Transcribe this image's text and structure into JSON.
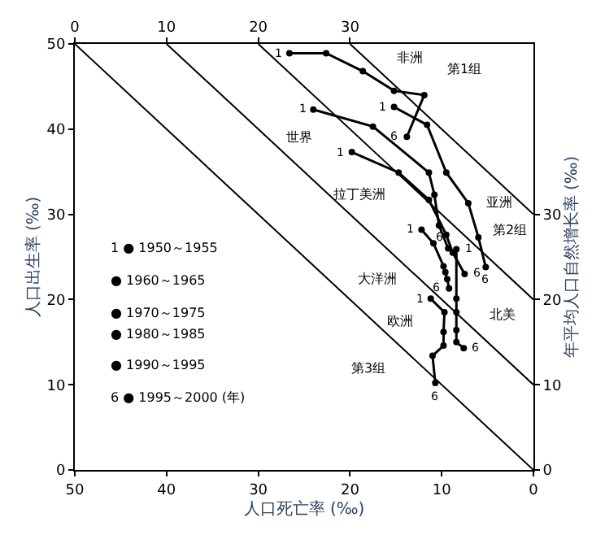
{
  "chart_data": {
    "type": "scatter",
    "xlabel": "人口死亡率 (‰)",
    "ylabel": "人口出生率 (‰)",
    "y2label": "年平均人口自然增长率 (‰)",
    "xlim": [
      50,
      0
    ],
    "xticks": [
      50,
      40,
      30,
      20,
      10,
      0
    ],
    "ylim": [
      0,
      50
    ],
    "yticks": [
      0,
      10,
      20,
      30,
      40,
      50
    ],
    "x2lim": [
      0,
      50
    ],
    "x2ticks": [
      0,
      10,
      20,
      30
    ],
    "y2lim": [
      0,
      50
    ],
    "y2ticks": [
      0,
      10,
      20,
      30
    ],
    "marker": "circle",
    "line_style": "solid",
    "series": [
      {
        "type": "line",
        "color": "#000000",
        "x": [
          50,
          0
        ],
        "values": [
          50,
          0
        ],
        "marker": "none"
      },
      {
        "type": "line",
        "color": "#000000",
        "x": [
          40,
          0
        ],
        "values": [
          50,
          10
        ],
        "marker": "none"
      },
      {
        "type": "line",
        "color": "#000000",
        "x": [
          30,
          0
        ],
        "values": [
          50,
          20
        ],
        "marker": "none"
      },
      {
        "type": "line",
        "color": "#000000",
        "x": [
          20,
          0
        ],
        "values": [
          50,
          30
        ],
        "marker": "none"
      },
      {
        "color": "#000000",
        "x": [
          26.6,
          22.6,
          18.6,
          15.2,
          11.9,
          13.8
        ],
        "values": [
          48.9,
          48.9,
          46.8,
          44.5,
          44.0,
          39.1
        ]
      },
      {
        "color": "#000000",
        "x": [
          15.2,
          11.6,
          9.5,
          7.1,
          6.0,
          5.2
        ],
        "values": [
          42.6,
          40.5,
          34.9,
          31.3,
          27.3,
          23.8
        ]
      },
      {
        "color": "#000000",
        "x": [
          24.0,
          17.5,
          11.4,
          10.8,
          10.3,
          9.3
        ],
        "values": [
          42.3,
          40.3,
          34.9,
          32.3,
          28.7,
          26.0
        ]
      },
      {
        "color": "#000000",
        "x": [
          19.8,
          14.7,
          11.4,
          9.5,
          8.8,
          7.5
        ],
        "values": [
          37.3,
          34.9,
          31.7,
          27.6,
          25.5,
          23.0
        ]
      },
      {
        "color": "#000000",
        "x": [
          12.2,
          10.9,
          9.8,
          9.6,
          9.4,
          9.2
        ],
        "values": [
          28.2,
          26.6,
          23.9,
          23.2,
          22.4,
          21.3
        ]
      },
      {
        "color": "#000000",
        "x": [
          11.2,
          9.7,
          9.8,
          9.8,
          11.0,
          10.7
        ],
        "values": [
          20.1,
          18.5,
          16.2,
          14.6,
          13.4,
          10.2
        ]
      },
      {
        "color": "#000000",
        "x": [
          8.4,
          8.4,
          8.4,
          8.4,
          8.4,
          7.6
        ],
        "values": [
          25.9,
          20.1,
          18.5,
          16.4,
          15.0,
          14.3
        ]
      }
    ],
    "annotations": [
      "非洲",
      "第1组",
      "世界",
      "拉丁美洲",
      "亚洲",
      "第2组",
      "大洋洲",
      "欧洲",
      "北美",
      "第3组",
      "1 ● 1950～1955",
      "● 1960～1965",
      "● 1970～1975",
      "● 1980～1985",
      "● 1990～1995",
      "6 ● 1995～2000 (年)",
      {
        "text": "1",
        "x": 26.6,
        "y": 48.9
      },
      {
        "text": "6",
        "x": 13.8,
        "y": 39.1
      },
      {
        "text": "1",
        "x": 15.2,
        "y": 42.6
      },
      {
        "text": "6",
        "x": 5.2,
        "y": 23.8
      },
      {
        "text": "1",
        "x": 24.0,
        "y": 42.3
      },
      {
        "text": "6",
        "x": 9.3,
        "y": 26.0
      },
      {
        "text": "1",
        "x": 19.8,
        "y": 37.3
      },
      {
        "text": "6",
        "x": 7.5,
        "y": 23.0
      },
      {
        "text": "1",
        "x": 12.2,
        "y": 28.2
      },
      {
        "text": "6",
        "x": 9.2,
        "y": 21.3
      },
      {
        "text": "1",
        "x": 11.2,
        "y": 20.1
      },
      {
        "text": "6",
        "x": 10.7,
        "y": 10.2
      },
      {
        "text": "1",
        "x": 8.4,
        "y": 25.9
      },
      {
        "text": "6",
        "x": 7.6,
        "y": 14.3
      }
    ]
  }
}
